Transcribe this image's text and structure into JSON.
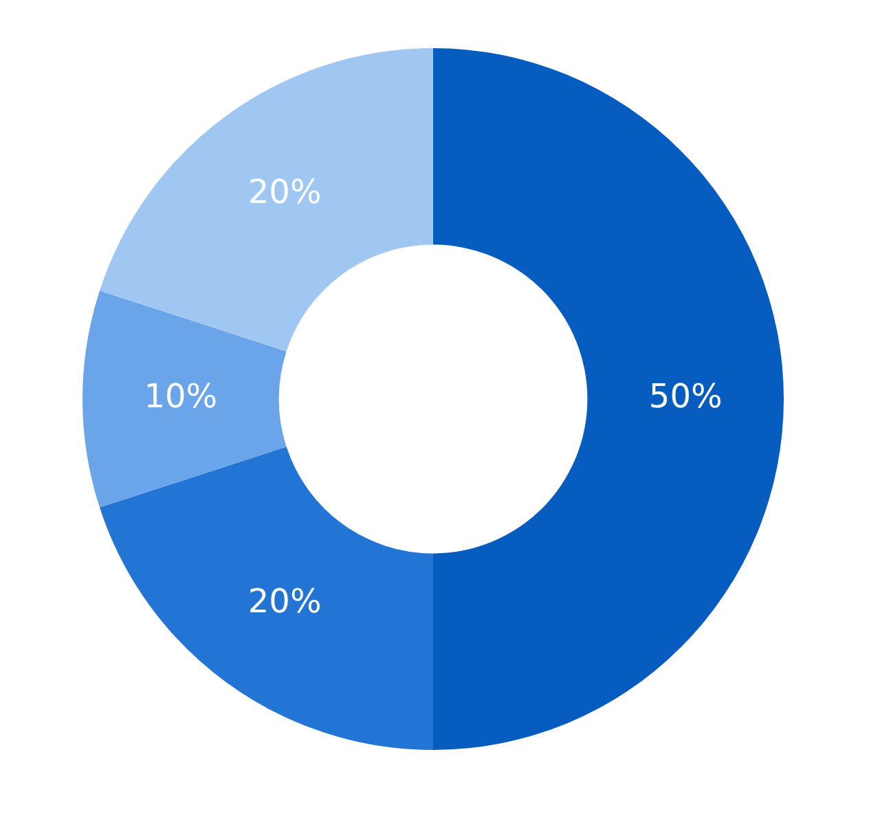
{
  "chart_data": {
    "type": "donut",
    "categories": [
      null,
      null,
      null,
      null
    ],
    "values": [
      50,
      20,
      10,
      20
    ],
    "colors": [
      "#075cbf",
      "#2275d4",
      "#6ba5e9",
      "#9fc7f1"
    ],
    "value_labels": [
      "50%",
      "20%",
      "10%",
      "20%"
    ],
    "legend": false
  }
}
